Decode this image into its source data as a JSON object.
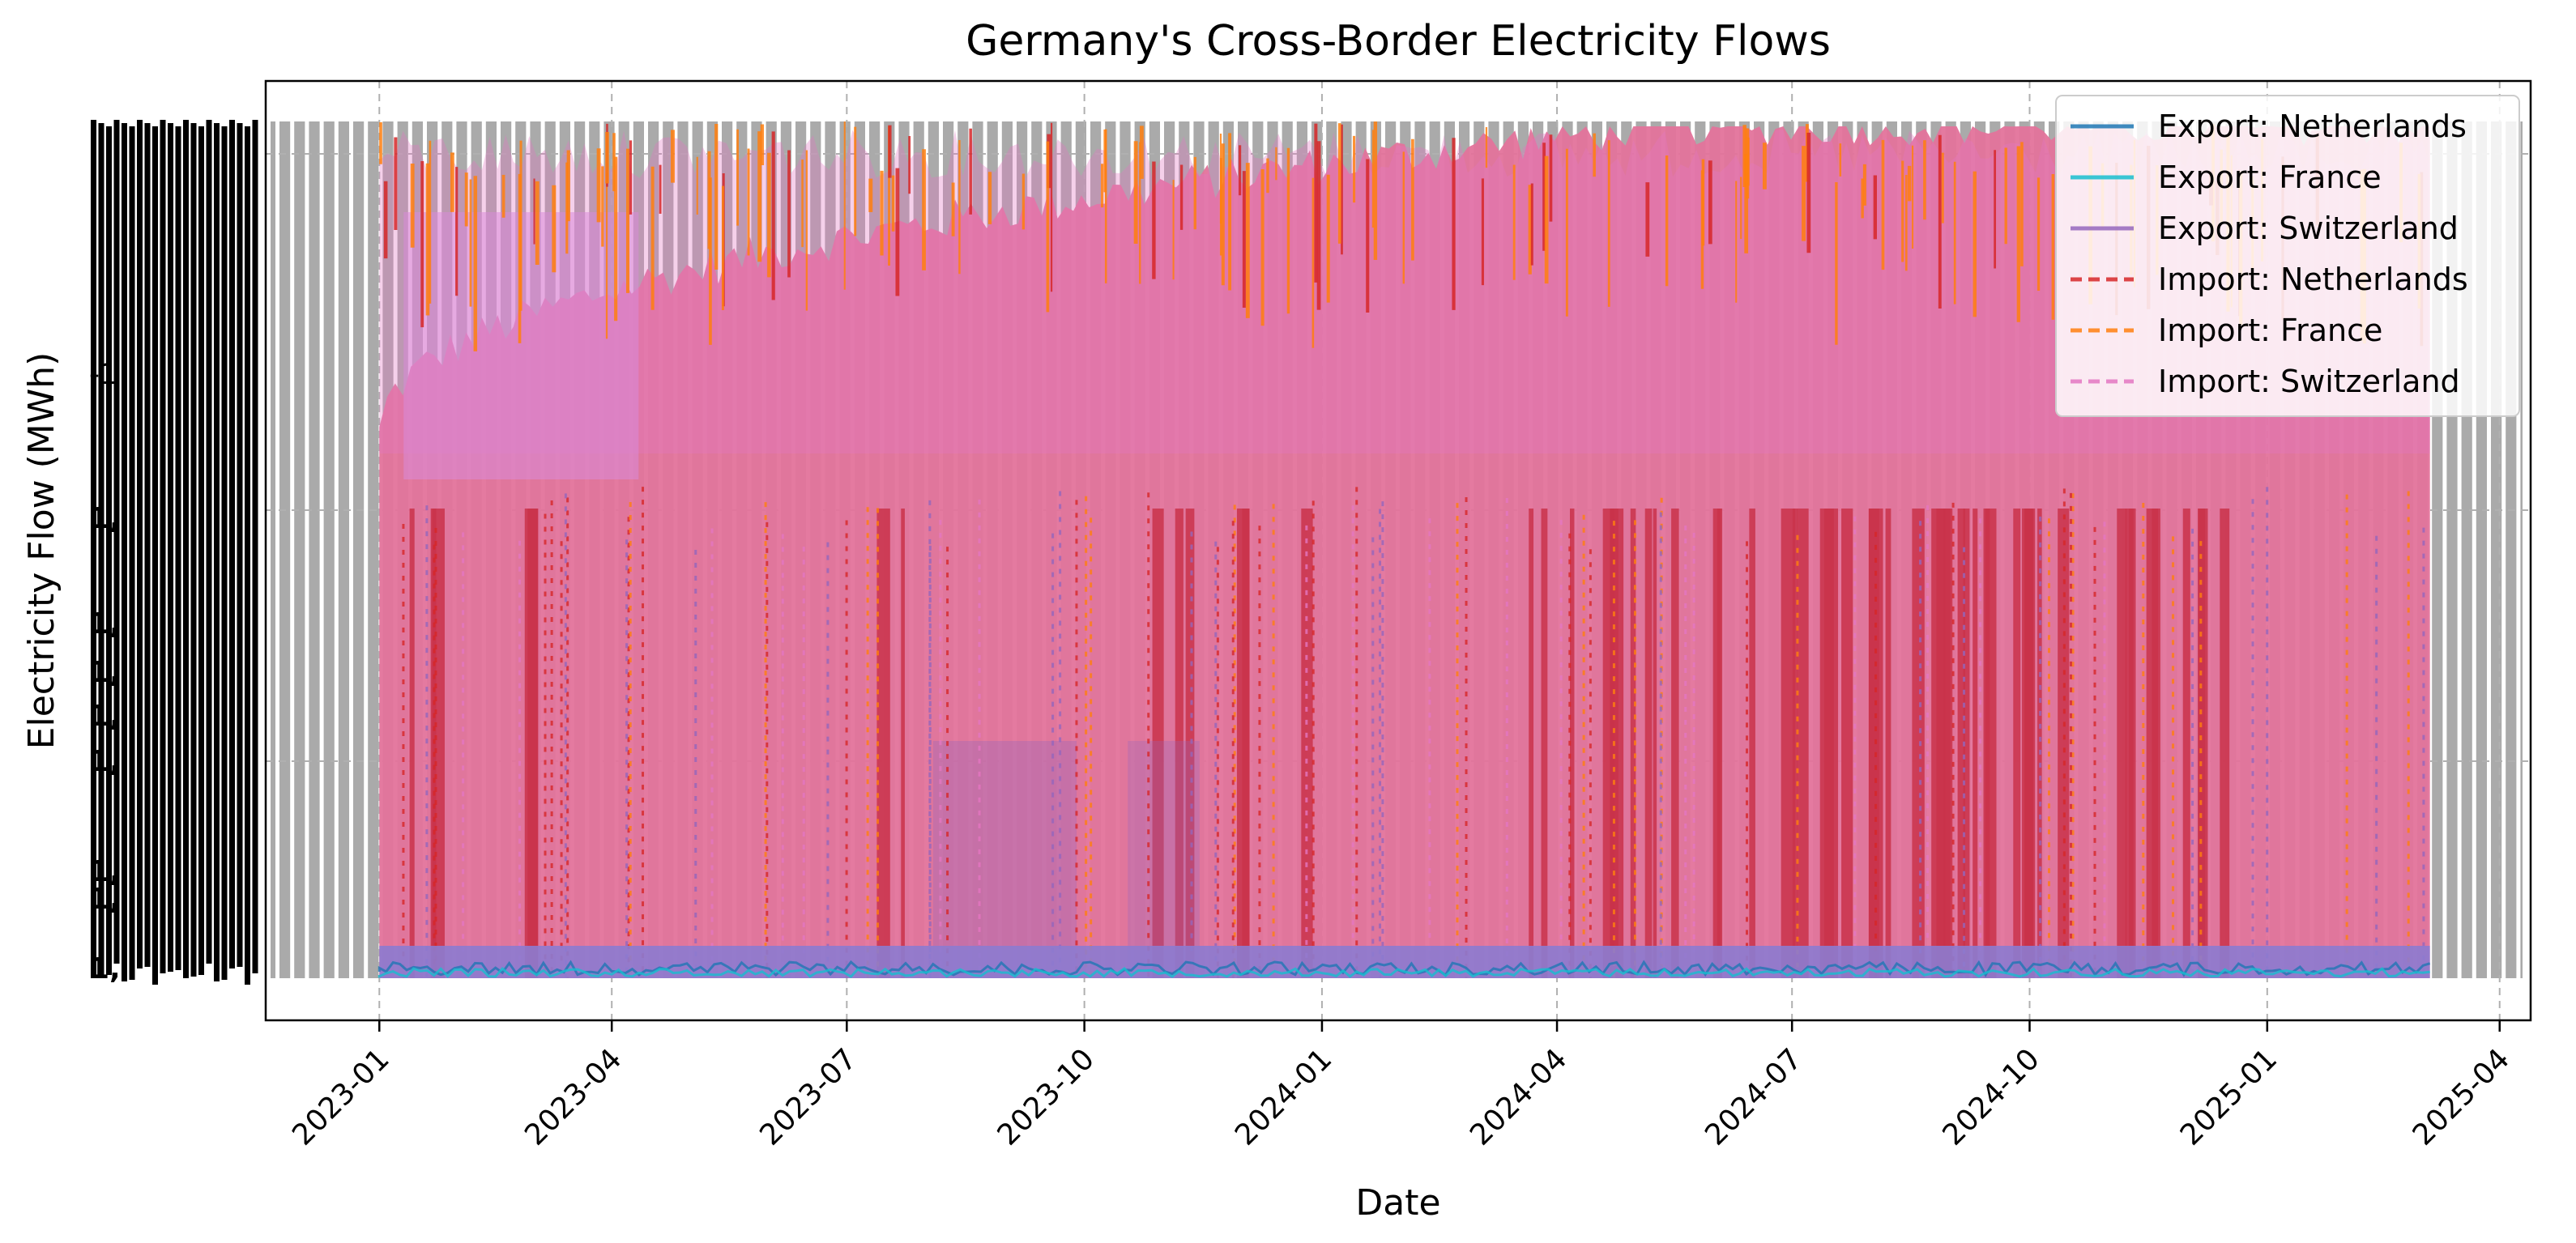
{
  "chart_data": {
    "type": "line",
    "title": "Germany's Cross-Border Electricity Flows",
    "xlabel": "Date",
    "ylabel": "Electricity Flow (MWh)",
    "x_ticks": [
      "2023-01",
      "2023-04",
      "2023-07",
      "2023-10",
      "2024-01",
      "2024-04",
      "2024-07",
      "2024-10",
      "2025-01",
      "2025-04"
    ],
    "x_range": [
      "2022-11-18",
      "2025-04-13"
    ],
    "data_range": [
      "2023-01-01",
      "2025-03-05"
    ],
    "y_tick_labels_visible": [
      "-1",
      "1,",
      "1,",
      "1,",
      "1,",
      "1,",
      "1,",
      "1,",
      "1,"
    ],
    "grid": true,
    "legend_position": "top-right",
    "series": [
      {
        "name": "Export: Netherlands",
        "color": "#1f77b4",
        "style": "solid"
      },
      {
        "name": "Export: France",
        "color": "#17becf",
        "style": "solid"
      },
      {
        "name": "Export: Switzerland",
        "color": "#9467bd",
        "style": "solid"
      },
      {
        "name": "Import: Netherlands",
        "color": "#d62728",
        "style": "dashed"
      },
      {
        "name": "Import: France",
        "color": "#ff7f0e",
        "style": "dashed"
      },
      {
        "name": "Import: Switzerland",
        "color": "#e377c2",
        "style": "dashed"
      }
    ],
    "colors": {
      "import_fill": "#e3739b",
      "import_dark": "#c9324a",
      "tick_bars": "#aaaaaa",
      "export_band": "#8c7bd0"
    }
  }
}
